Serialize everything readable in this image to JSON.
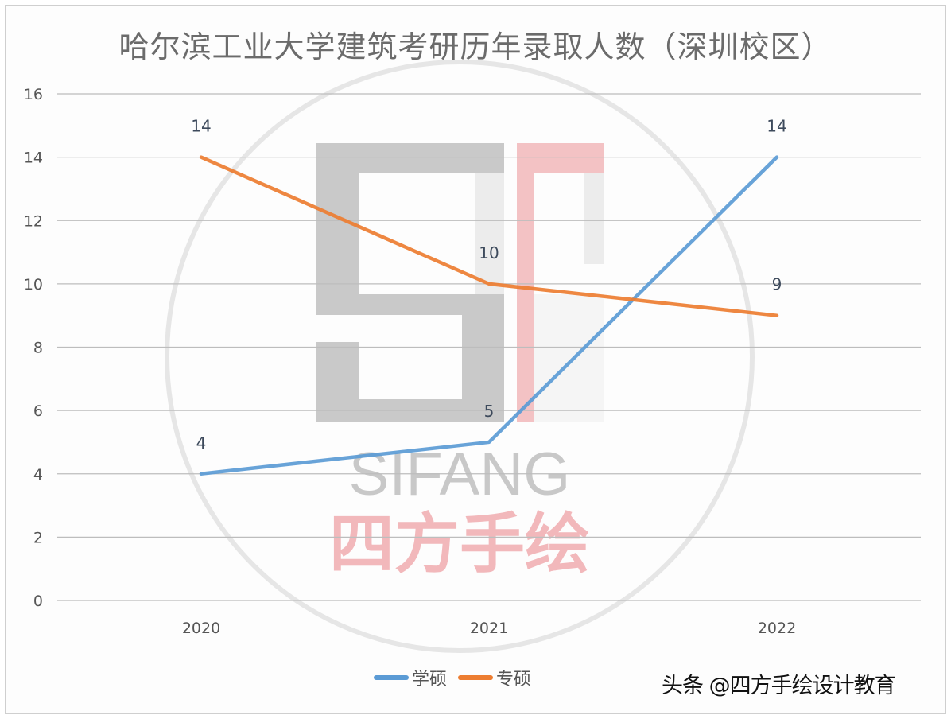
{
  "title": "哈尔滨工业大学建筑考研历年录取人数（深圳校区）",
  "legend": [
    {
      "label": "学硕",
      "color": "#5b9bd5"
    },
    {
      "label": "专硕",
      "color": "#ed7d31"
    }
  ],
  "credit": "头条 @四方手绘设计教育",
  "watermark": {
    "logo": "SF",
    "text_en": "SIFANG",
    "text_cn": "四方手绘"
  },
  "chart_data": {
    "type": "line",
    "title": "哈尔滨工业大学建筑考研历年录取人数（深圳校区）",
    "xlabel": "",
    "ylabel": "",
    "categories": [
      "2020",
      "2021",
      "2022"
    ],
    "series": [
      {
        "name": "学硕",
        "color": "#5b9bd5",
        "values": [
          4,
          5,
          14
        ]
      },
      {
        "name": "专硕",
        "color": "#ed7d31",
        "values": [
          14,
          10,
          9
        ]
      }
    ],
    "yticks": [
      "0",
      "2",
      "4",
      "6",
      "8",
      "10",
      "12",
      "14",
      "16"
    ],
    "ylim": [
      0,
      16
    ],
    "grid": true,
    "legend_position": "bottom",
    "data_labels": true
  }
}
